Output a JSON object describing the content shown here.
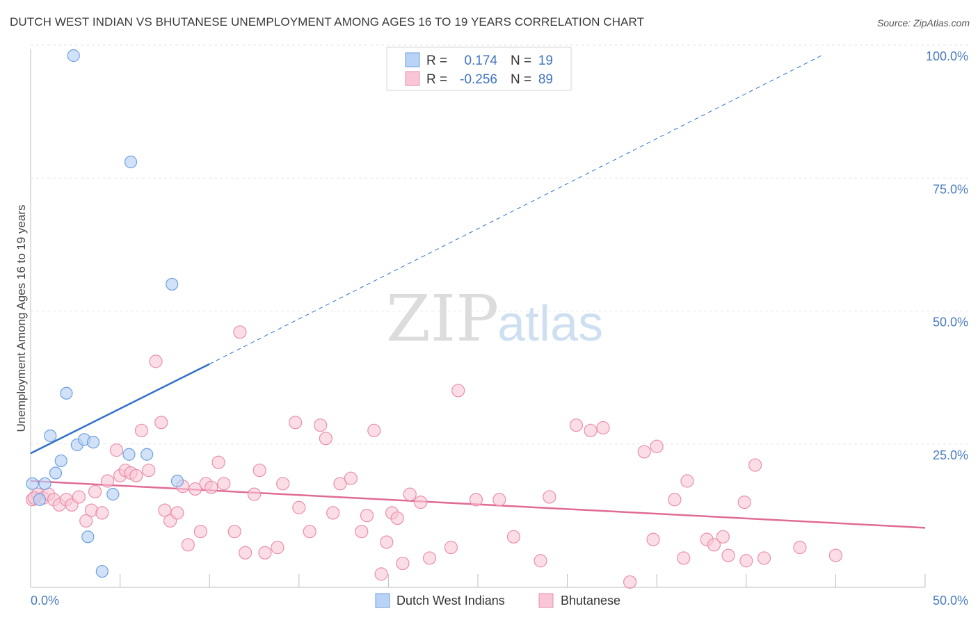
{
  "title": "DUTCH WEST INDIAN VS BHUTANESE UNEMPLOYMENT AMONG AGES 16 TO 19 YEARS CORRELATION CHART",
  "source": "Source: ZipAtlas.com",
  "watermark": {
    "zip": "ZIP",
    "atlas": "atlas"
  },
  "colors": {
    "blue_fill": "#b8d3f5",
    "blue_stroke": "#6e9fe0",
    "blue_line": "#2f6fc6",
    "pink_fill": "#f8c6d6",
    "pink_stroke": "#ea8fab",
    "pink_line": "#e06b96",
    "grid": "#e6e6e6",
    "axis_text": "#4a7cc0"
  },
  "legend": {
    "rows": [
      {
        "r_label": "R =",
        "r_value": "0.174",
        "n_label": "N =",
        "n_value": "19"
      },
      {
        "r_label": "R =",
        "r_value": "-0.256",
        "n_label": "N =",
        "n_value": "89"
      }
    ]
  },
  "bottom_legend": [
    "Dutch West Indians",
    "Bhutanese"
  ],
  "chart_data": {
    "type": "scatter",
    "title": "DUTCH WEST INDIAN VS BHUTANESE UNEMPLOYMENT AMONG AGES 16 TO 19 YEARS CORRELATION CHART",
    "xlabel": "",
    "ylabel": "Unemployment Among Ages 16 to 19 years",
    "xlim": [
      0,
      50
    ],
    "ylim": [
      0,
      100
    ],
    "x_tick_labels": [
      "0.0%",
      "50.0%"
    ],
    "y_ticks": [
      25,
      50,
      75,
      100
    ],
    "y_tick_labels": [
      "25.0%",
      "50.0%",
      "75.0%",
      "100.0%"
    ],
    "series": [
      {
        "name": "Dutch West Indians",
        "points": [
          [
            0.1,
            19.5
          ],
          [
            0.5,
            16.5
          ],
          [
            0.8,
            19.5
          ],
          [
            1.1,
            28.5
          ],
          [
            1.4,
            21.5
          ],
          [
            1.7,
            23.8
          ],
          [
            2.0,
            36.5
          ],
          [
            2.6,
            26.8
          ],
          [
            3.0,
            27.8
          ],
          [
            3.2,
            9.5
          ],
          [
            3.5,
            27.3
          ],
          [
            4.0,
            3.0
          ],
          [
            4.6,
            17.5
          ],
          [
            5.5,
            25.0
          ],
          [
            5.6,
            80.0
          ],
          [
            6.5,
            25.0
          ],
          [
            7.9,
            57.0
          ],
          [
            8.2,
            20.0
          ],
          [
            2.4,
            100.0
          ]
        ],
        "trend_solid": [
          [
            0,
            25.2
          ],
          [
            10,
            42.0
          ]
        ],
        "trend_dashed": [
          [
            10,
            42.0
          ],
          [
            44.2,
            100.0
          ]
        ]
      },
      {
        "name": "Bhutanese",
        "points": [
          [
            0.1,
            16.5
          ],
          [
            0.4,
            17.5
          ],
          [
            0.7,
            16.8
          ],
          [
            1.0,
            17.5
          ],
          [
            1.3,
            16.5
          ],
          [
            1.6,
            15.5
          ],
          [
            2.0,
            16.5
          ],
          [
            2.3,
            15.5
          ],
          [
            2.7,
            17.0
          ],
          [
            3.1,
            12.5
          ],
          [
            3.4,
            14.5
          ],
          [
            3.6,
            18.0
          ],
          [
            4.0,
            14.0
          ],
          [
            4.3,
            20.0
          ],
          [
            4.8,
            25.8
          ],
          [
            5.0,
            21.0
          ],
          [
            5.3,
            22.0
          ],
          [
            5.6,
            21.5
          ],
          [
            5.9,
            21.0
          ],
          [
            6.2,
            29.5
          ],
          [
            6.6,
            22.0
          ],
          [
            7.0,
            42.5
          ],
          [
            7.3,
            31.0
          ],
          [
            7.5,
            14.5
          ],
          [
            7.8,
            12.5
          ],
          [
            8.2,
            14.0
          ],
          [
            8.5,
            19.0
          ],
          [
            8.8,
            8.0
          ],
          [
            9.2,
            18.5
          ],
          [
            9.5,
            10.5
          ],
          [
            9.8,
            19.5
          ],
          [
            10.1,
            18.8
          ],
          [
            10.5,
            23.5
          ],
          [
            10.8,
            19.5
          ],
          [
            11.4,
            10.5
          ],
          [
            11.7,
            48.0
          ],
          [
            12.0,
            6.5
          ],
          [
            12.5,
            17.5
          ],
          [
            12.8,
            22.0
          ],
          [
            13.1,
            6.5
          ],
          [
            13.8,
            7.5
          ],
          [
            14.1,
            19.5
          ],
          [
            14.8,
            31.0
          ],
          [
            15.0,
            15.0
          ],
          [
            15.6,
            10.5
          ],
          [
            16.2,
            30.5
          ],
          [
            16.5,
            28.0
          ],
          [
            16.9,
            14.0
          ],
          [
            17.3,
            19.5
          ],
          [
            17.9,
            20.5
          ],
          [
            18.5,
            10.5
          ],
          [
            18.8,
            13.5
          ],
          [
            19.2,
            29.5
          ],
          [
            19.6,
            2.5
          ],
          [
            19.9,
            8.5
          ],
          [
            20.2,
            14.0
          ],
          [
            20.5,
            13.0
          ],
          [
            20.8,
            4.5
          ],
          [
            21.2,
            17.5
          ],
          [
            21.8,
            16.0
          ],
          [
            22.3,
            5.5
          ],
          [
            23.5,
            7.5
          ],
          [
            23.9,
            37.0
          ],
          [
            24.9,
            16.5
          ],
          [
            26.2,
            16.5
          ],
          [
            27.0,
            9.5
          ],
          [
            28.5,
            5.0
          ],
          [
            29.0,
            17.0
          ],
          [
            30.5,
            30.5
          ],
          [
            31.3,
            29.5
          ],
          [
            32.0,
            30.0
          ],
          [
            33.5,
            1.0
          ],
          [
            34.3,
            25.5
          ],
          [
            34.8,
            9.0
          ],
          [
            35.0,
            26.5
          ],
          [
            36.0,
            16.5
          ],
          [
            36.5,
            5.5
          ],
          [
            36.7,
            20.0
          ],
          [
            37.8,
            9.0
          ],
          [
            38.2,
            8.0
          ],
          [
            38.7,
            9.5
          ],
          [
            39.0,
            6.0
          ],
          [
            39.9,
            16.0
          ],
          [
            40.0,
            5.0
          ],
          [
            40.5,
            23.0
          ],
          [
            41.0,
            5.5
          ],
          [
            43.0,
            7.5
          ],
          [
            45.0,
            6.0
          ],
          [
            0.2,
            16.8
          ]
        ],
        "trend_solid": [
          [
            0,
            20.0
          ],
          [
            50,
            11.2
          ]
        ]
      }
    ]
  }
}
